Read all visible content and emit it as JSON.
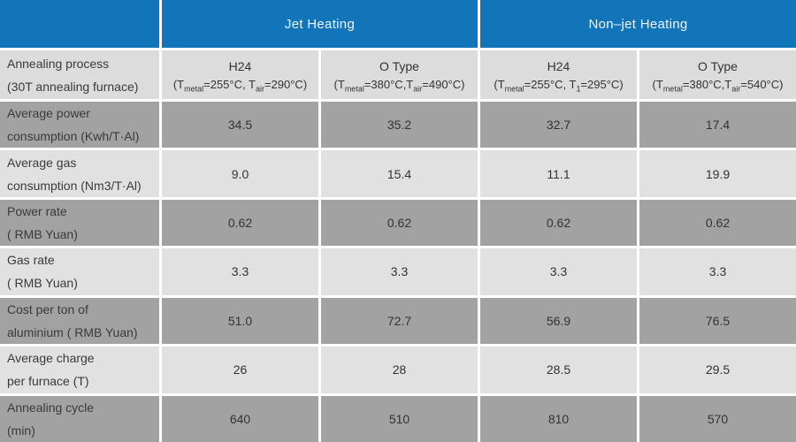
{
  "colors": {
    "header_blue": "#1274b9",
    "header_gray": "#dcdcdc",
    "row_dark": "#a2a2a2",
    "row_light": "#e1e1e1",
    "divider": "#ffffff"
  },
  "display": {
    "group_headers": [
      "Jet Heating",
      "Non–jet Heating"
    ],
    "row_header": {
      "line1": "Annealing process",
      "line2": "(30T annealing furnace)"
    },
    "col_headers": [
      {
        "title": "H24",
        "f1": "(T",
        "sub1": "metal",
        "f2": "=255°C, T",
        "sub2": "air",
        "f3": "=290°C)"
      },
      {
        "title": "O Type",
        "f1": "(T",
        "sub1": "metal",
        "f2": "=380°C,T",
        "sub2": "air",
        "f3": "=490°C)"
      },
      {
        "title": "H24",
        "f1": "(T",
        "sub1": "metal",
        "f2": "=255°C, T",
        "sub2": "1",
        "f3": "=295°C)"
      },
      {
        "title": "O Type",
        "f1": "(T",
        "sub1": "metal",
        "f2": "=380°C,T",
        "sub2": "air",
        "f3": "=540°C)"
      }
    ],
    "rows": [
      {
        "label1": "Average power",
        "label2": "consumption (Kwh/T·Al)",
        "values": [
          "34.5",
          "35.2",
          "32.7",
          "17.4"
        ]
      },
      {
        "label1": "Average gas",
        "label2": "consumption (Nm3/T·Al)",
        "values": [
          "9.0",
          "15.4",
          "11.1",
          "19.9"
        ]
      },
      {
        "label1": "Power rate",
        "label2": "( RMB Yuan)",
        "values": [
          "0.62",
          "0.62",
          "0.62",
          "0.62"
        ]
      },
      {
        "label1": "Gas rate",
        "label2": "( RMB Yuan)",
        "values": [
          "3.3",
          "3.3",
          "3.3",
          "3.3"
        ]
      },
      {
        "label1": "Cost per ton of",
        "label2": "aluminium ( RMB Yuan)",
        "values": [
          "51.0",
          "72.7",
          "56.9",
          "76.5"
        ]
      },
      {
        "label1": "Average charge",
        "label2": "per furnace (T)",
        "values": [
          "26",
          "28",
          "28.5",
          "29.5"
        ]
      },
      {
        "label1": "Annealing cycle",
        "label2": "(min)",
        "values": [
          "640",
          "510",
          "810",
          "570"
        ]
      }
    ]
  },
  "chart_data": {
    "type": "table",
    "title": "",
    "row_header": "Annealing process (30T annealing furnace)",
    "column_groups": [
      {
        "label": "Jet Heating",
        "span": 2
      },
      {
        "label": "Non–jet Heating",
        "span": 2
      }
    ],
    "columns": [
      "H24 (Tmetal=255°C, Tair=290°C)",
      "O Type (Tmetal=380°C, Tair=490°C)",
      "H24 (Tmetal=255°C, T1=295°C)",
      "O Type (Tmetal=380°C, Tair=540°C)"
    ],
    "rows": [
      {
        "label": "Average power consumption (Kwh/T·Al)",
        "values": [
          34.5,
          35.2,
          32.7,
          17.4
        ]
      },
      {
        "label": "Average gas consumption (Nm3/T·Al)",
        "values": [
          9.0,
          15.4,
          11.1,
          19.9
        ]
      },
      {
        "label": "Power rate ( RMB Yuan)",
        "values": [
          0.62,
          0.62,
          0.62,
          0.62
        ]
      },
      {
        "label": "Gas rate ( RMB Yuan)",
        "values": [
          3.3,
          3.3,
          3.3,
          3.3
        ]
      },
      {
        "label": "Cost per ton of aluminium ( RMB Yuan)",
        "values": [
          51.0,
          72.7,
          56.9,
          76.5
        ]
      },
      {
        "label": "Average charge per furnace (T)",
        "values": [
          26,
          28,
          28.5,
          29.5
        ]
      },
      {
        "label": "Annealing cycle (min)",
        "values": [
          640,
          510,
          810,
          570
        ]
      }
    ]
  }
}
